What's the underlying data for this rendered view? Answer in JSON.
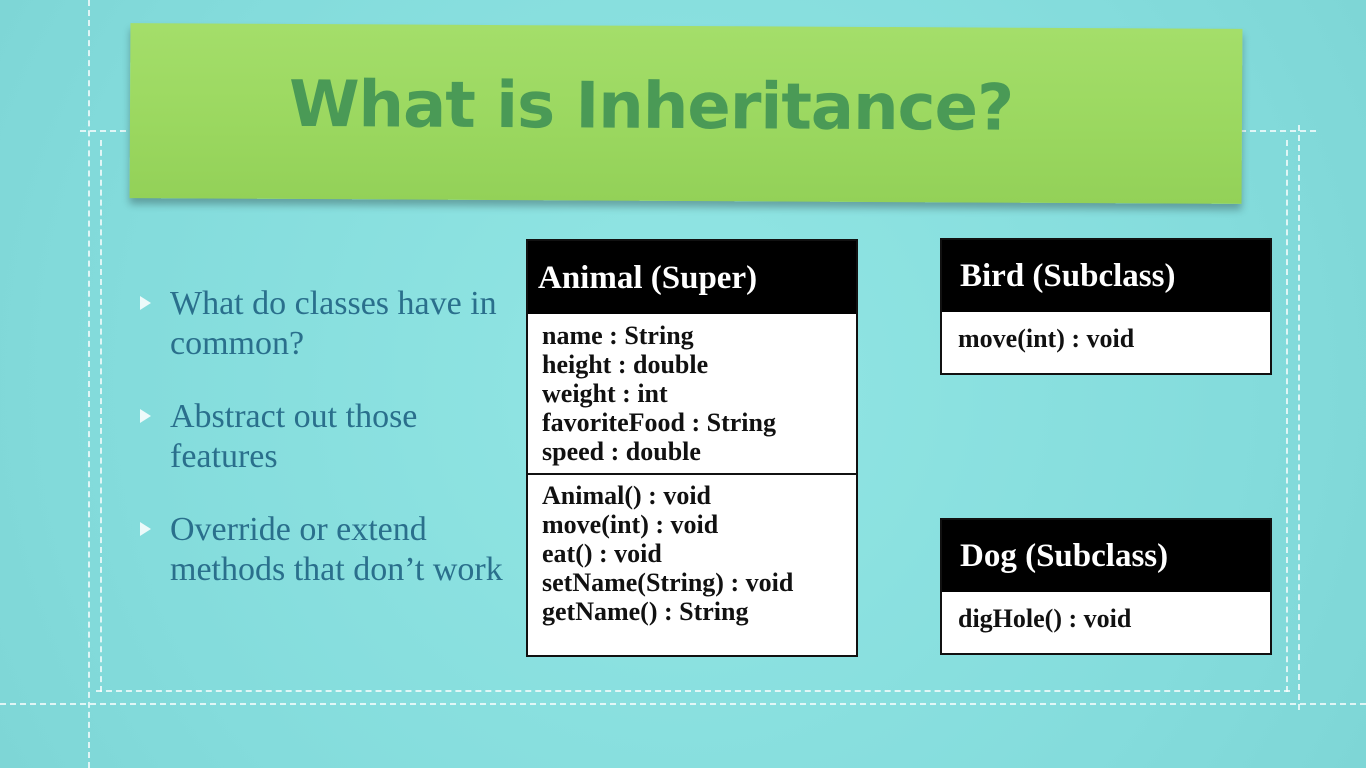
{
  "slide": {
    "title": "What is Inheritance?"
  },
  "bullets": [
    "What do classes have in common?",
    "Abstract out those features",
    "Override or extend methods that don’t work"
  ],
  "classes": {
    "animal": {
      "name": "Animal (Super)",
      "attributes": [
        "name : String",
        "height : double",
        "weight : int",
        "favoriteFood : String",
        "speed : double"
      ],
      "methods": [
        "Animal() : void",
        "move(int) : void",
        "eat() : void",
        "setName(String) : void",
        "getName() : String"
      ]
    },
    "bird": {
      "name": "Bird (Subclass)",
      "methods": [
        "move(int) : void"
      ]
    },
    "dog": {
      "name": "Dog (Subclass)",
      "methods": [
        "digHole() : void"
      ]
    }
  },
  "colors": {
    "background": "#86dede",
    "banner": "#9bd860",
    "title_text": "#4a9a56",
    "bullet_text": "#2a6f8c",
    "uml_header": "#000000",
    "uml_body": "#ffffff"
  }
}
